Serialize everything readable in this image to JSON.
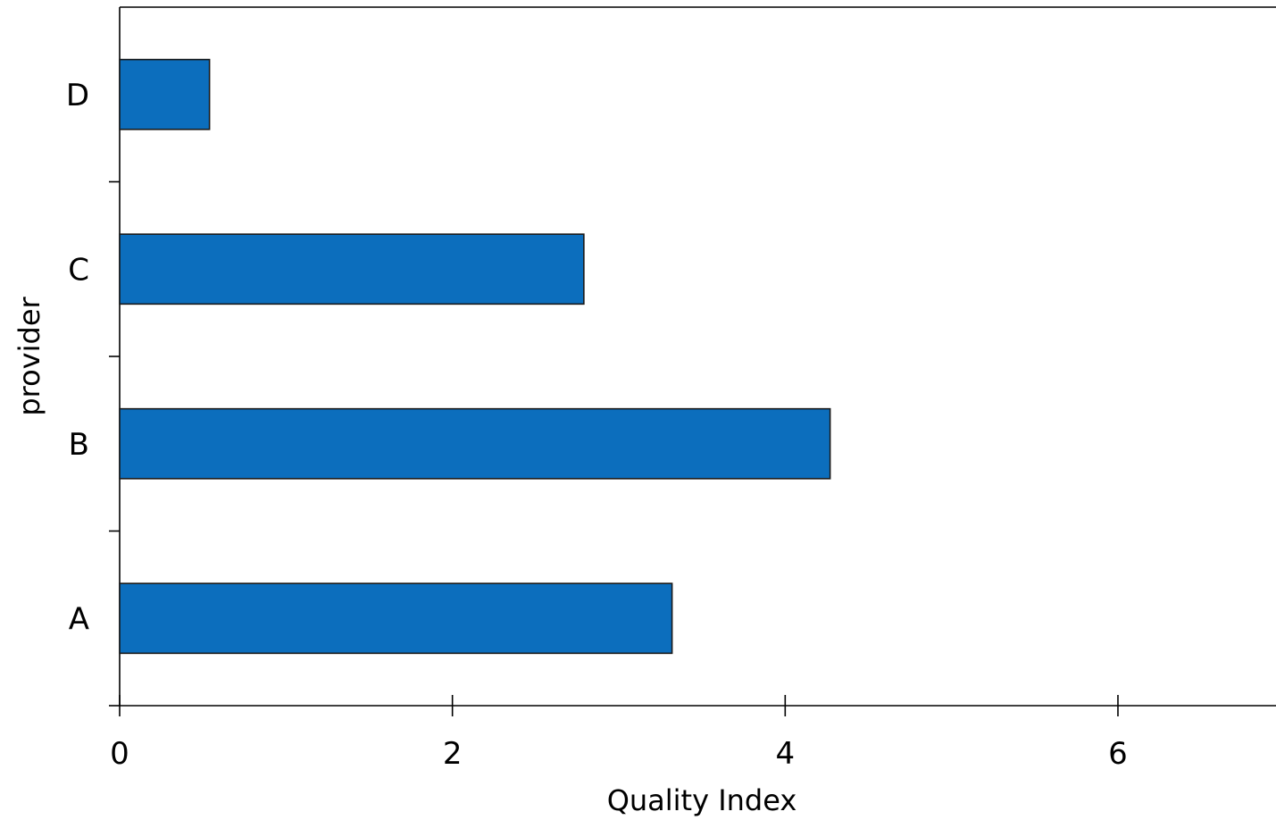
{
  "chart_data": {
    "type": "bar",
    "orientation": "horizontal",
    "categories": [
      "A",
      "B",
      "C",
      "D"
    ],
    "values": [
      3.32,
      4.27,
      2.79,
      0.54
    ],
    "title": "",
    "xlabel": "Quality Index",
    "ylabel": "provider",
    "xlim": [
      0,
      6.95
    ],
    "x_ticks": [
      "0",
      "2",
      "4",
      "6"
    ],
    "x_tick_values": [
      0,
      2,
      4,
      6
    ],
    "grid": false,
    "legend": "none",
    "bar_color": "#0c6ebd",
    "bar_edge_color": "#1a1a1a"
  }
}
